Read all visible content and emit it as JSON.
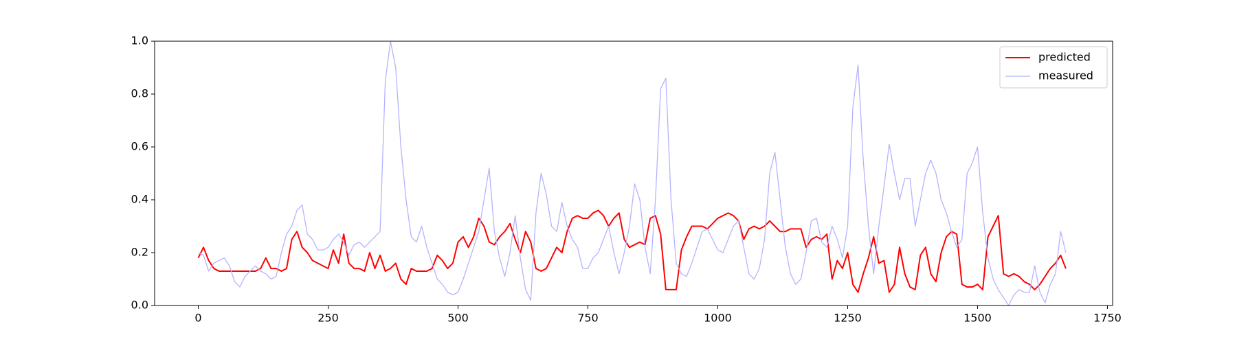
{
  "chart_data": {
    "type": "line",
    "x": [
      0,
      10,
      20,
      30,
      40,
      50,
      60,
      70,
      80,
      90,
      100,
      110,
      120,
      130,
      140,
      150,
      160,
      170,
      180,
      190,
      200,
      210,
      220,
      230,
      240,
      250,
      260,
      270,
      280,
      290,
      300,
      310,
      320,
      330,
      340,
      350,
      360,
      370,
      380,
      390,
      400,
      410,
      420,
      430,
      440,
      450,
      460,
      470,
      480,
      490,
      500,
      510,
      520,
      530,
      540,
      550,
      560,
      570,
      580,
      590,
      600,
      610,
      620,
      630,
      640,
      650,
      660,
      670,
      680,
      690,
      700,
      710,
      720,
      730,
      740,
      750,
      760,
      770,
      780,
      790,
      800,
      810,
      820,
      830,
      840,
      850,
      860,
      870,
      880,
      890,
      900,
      910,
      920,
      930,
      940,
      950,
      960,
      970,
      980,
      990,
      1000,
      1010,
      1020,
      1030,
      1040,
      1050,
      1060,
      1070,
      1080,
      1090,
      1100,
      1110,
      1120,
      1130,
      1140,
      1150,
      1160,
      1170,
      1180,
      1190,
      1200,
      1210,
      1220,
      1230,
      1240,
      1250,
      1260,
      1270,
      1280,
      1290,
      1300,
      1310,
      1320,
      1330,
      1340,
      1350,
      1360,
      1370,
      1380,
      1390,
      1400,
      1410,
      1420,
      1430,
      1440,
      1450,
      1460,
      1470,
      1480,
      1490,
      1500,
      1510,
      1520,
      1530,
      1540,
      1550,
      1560,
      1570,
      1580,
      1590,
      1600,
      1610,
      1620,
      1630,
      1640,
      1650,
      1660,
      1670
    ],
    "series": [
      {
        "name": "predicted",
        "color": "#ff0000",
        "values": [
          0.18,
          0.22,
          0.17,
          0.14,
          0.13,
          0.13,
          0.13,
          0.13,
          0.13,
          0.13,
          0.13,
          0.13,
          0.14,
          0.18,
          0.14,
          0.14,
          0.13,
          0.14,
          0.25,
          0.28,
          0.22,
          0.2,
          0.17,
          0.16,
          0.15,
          0.14,
          0.21,
          0.16,
          0.27,
          0.16,
          0.14,
          0.14,
          0.13,
          0.2,
          0.14,
          0.19,
          0.13,
          0.14,
          0.16,
          0.1,
          0.08,
          0.14,
          0.13,
          0.13,
          0.13,
          0.14,
          0.19,
          0.17,
          0.14,
          0.16,
          0.24,
          0.26,
          0.22,
          0.26,
          0.33,
          0.3,
          0.24,
          0.23,
          0.26,
          0.28,
          0.31,
          0.25,
          0.2,
          0.28,
          0.24,
          0.14,
          0.13,
          0.14,
          0.18,
          0.22,
          0.2,
          0.28,
          0.33,
          0.34,
          0.33,
          0.33,
          0.35,
          0.36,
          0.34,
          0.3,
          0.33,
          0.35,
          0.25,
          0.22,
          0.23,
          0.24,
          0.23,
          0.33,
          0.34,
          0.27,
          0.06,
          0.06,
          0.06,
          0.21,
          0.26,
          0.3,
          0.3,
          0.3,
          0.29,
          0.31,
          0.33,
          0.34,
          0.35,
          0.34,
          0.32,
          0.25,
          0.29,
          0.3,
          0.29,
          0.3,
          0.32,
          0.3,
          0.28,
          0.28,
          0.29,
          0.29,
          0.29,
          0.22,
          0.25,
          0.26,
          0.25,
          0.27,
          0.1,
          0.17,
          0.14,
          0.2,
          0.08,
          0.05,
          0.12,
          0.18,
          0.26,
          0.16,
          0.17,
          0.05,
          0.08,
          0.22,
          0.12,
          0.07,
          0.06,
          0.19,
          0.22,
          0.12,
          0.09,
          0.2,
          0.26,
          0.28,
          0.27,
          0.08,
          0.07,
          0.07,
          0.08,
          0.06,
          0.26,
          0.3,
          0.34,
          0.12,
          0.11,
          0.12,
          0.11,
          0.09,
          0.08,
          0.06,
          0.08,
          0.11,
          0.14,
          0.16,
          0.19,
          0.14
        ]
      },
      {
        "name": "measured",
        "color": "#b3b3ff",
        "values": [
          0.2,
          0.19,
          0.13,
          0.16,
          0.17,
          0.18,
          0.15,
          0.09,
          0.07,
          0.11,
          0.13,
          0.15,
          0.13,
          0.12,
          0.1,
          0.11,
          0.2,
          0.27,
          0.3,
          0.36,
          0.38,
          0.27,
          0.25,
          0.21,
          0.21,
          0.22,
          0.25,
          0.27,
          0.24,
          0.19,
          0.23,
          0.24,
          0.22,
          0.24,
          0.26,
          0.28,
          0.85,
          1.0,
          0.9,
          0.6,
          0.4,
          0.26,
          0.24,
          0.3,
          0.22,
          0.16,
          0.1,
          0.08,
          0.05,
          0.04,
          0.05,
          0.1,
          0.16,
          0.22,
          0.28,
          0.4,
          0.52,
          0.28,
          0.18,
          0.11,
          0.2,
          0.34,
          0.18,
          0.06,
          0.02,
          0.35,
          0.5,
          0.42,
          0.3,
          0.28,
          0.39,
          0.3,
          0.25,
          0.22,
          0.14,
          0.14,
          0.18,
          0.2,
          0.25,
          0.3,
          0.2,
          0.12,
          0.2,
          0.3,
          0.46,
          0.4,
          0.22,
          0.12,
          0.4,
          0.82,
          0.86,
          0.4,
          0.16,
          0.12,
          0.11,
          0.16,
          0.22,
          0.28,
          0.29,
          0.25,
          0.21,
          0.2,
          0.25,
          0.3,
          0.32,
          0.22,
          0.12,
          0.1,
          0.14,
          0.25,
          0.5,
          0.58,
          0.4,
          0.22,
          0.12,
          0.08,
          0.1,
          0.2,
          0.32,
          0.33,
          0.24,
          0.22,
          0.3,
          0.25,
          0.18,
          0.3,
          0.75,
          0.91,
          0.55,
          0.3,
          0.12,
          0.3,
          0.45,
          0.61,
          0.5,
          0.4,
          0.48,
          0.48,
          0.3,
          0.4,
          0.5,
          0.55,
          0.5,
          0.4,
          0.35,
          0.28,
          0.22,
          0.25,
          0.5,
          0.54,
          0.6,
          0.35,
          0.18,
          0.1,
          0.06,
          0.03,
          0.0,
          0.04,
          0.06,
          0.05,
          0.05,
          0.15,
          0.05,
          0.01,
          0.08,
          0.12,
          0.28,
          0.2
        ]
      }
    ],
    "xlim": [
      -84,
      1760
    ],
    "ylim": [
      0,
      1
    ],
    "xticks": [
      0,
      250,
      500,
      750,
      1000,
      1250,
      1500,
      1750
    ],
    "yticks": [
      {
        "value": 0,
        "label": "0.0"
      },
      0.2,
      0.4,
      0.6,
      0.8,
      {
        "value": 1,
        "label": "1.0"
      }
    ],
    "grid": false,
    "legend": "upper right"
  }
}
